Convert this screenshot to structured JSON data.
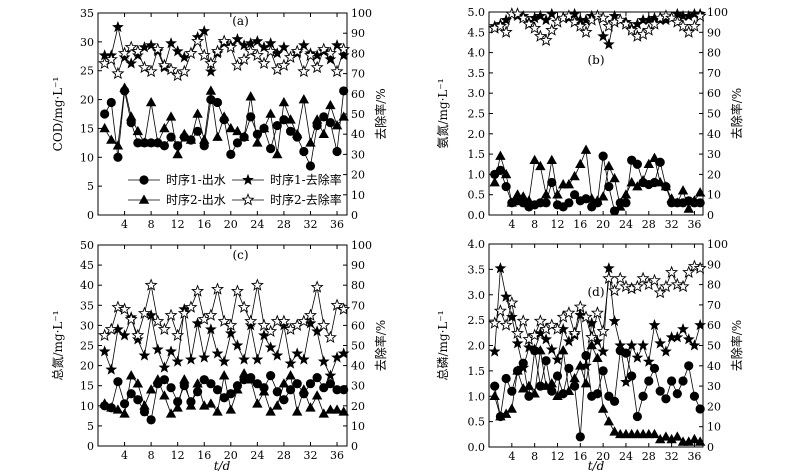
{
  "colors": {
    "ink": "#000000",
    "open_marker": "#ffffff"
  },
  "legend": {
    "entries": [
      {
        "label": "时序1-出水",
        "marker": "circle"
      },
      {
        "label": "时序2-出水",
        "marker": "triangle"
      },
      {
        "label": "时序1-去除率",
        "marker": "star-filled"
      },
      {
        "label": "时序2-去除率",
        "marker": "star-open"
      }
    ]
  },
  "shared_xlabel": "t/d",
  "chart_data": [
    {
      "panel": "(a)",
      "type": "line",
      "x": [
        1,
        2,
        3,
        4,
        5,
        6,
        7,
        8,
        9,
        10,
        11,
        12,
        13,
        14,
        15,
        16,
        17,
        18,
        19,
        20,
        21,
        22,
        23,
        24,
        25,
        26,
        27,
        28,
        29,
        30,
        31,
        32,
        33,
        34,
        35,
        36,
        37
      ],
      "xlim": [
        0,
        37.5
      ],
      "xticks": [
        4,
        8,
        12,
        16,
        20,
        24,
        28,
        32,
        36
      ],
      "ylabel": "COD/mg·L⁻¹",
      "ylim": [
        0,
        35
      ],
      "yticks": [
        0,
        5,
        10,
        15,
        20,
        25,
        30,
        35
      ],
      "y2label": "去除率/%",
      "y2lim": [
        0,
        100
      ],
      "y2ticks": [
        0,
        10,
        20,
        30,
        40,
        50,
        60,
        70,
        80,
        90,
        100
      ],
      "series": [
        {
          "name": "时序1-出水",
          "axis": "left",
          "marker": "circle",
          "values": [
            17.5,
            19.5,
            10.0,
            21.5,
            16.0,
            12.5,
            12.5,
            12.5,
            12.5,
            12.0,
            13.5,
            12.0,
            13.5,
            13.0,
            14.5,
            12.0,
            20.0,
            19.5,
            16.5,
            10.5,
            12.5,
            13.5,
            17.0,
            14.0,
            15.0,
            11.5,
            15.5,
            16.5,
            14.5,
            13.5,
            11.0,
            8.5,
            15.5,
            17.0,
            16.0,
            11.0,
            21.5
          ]
        },
        {
          "name": "时序2-出水",
          "axis": "left",
          "marker": "triangle",
          "values": [
            15.0,
            13.0,
            12.0,
            22.0,
            17.0,
            14.5,
            12.5,
            19.5,
            12.5,
            15.0,
            17.0,
            10.5,
            14.0,
            13.0,
            17.5,
            13.0,
            21.5,
            13.5,
            17.0,
            15.0,
            14.5,
            13.5,
            20.5,
            12.5,
            15.0,
            17.5,
            10.5,
            19.5,
            16.5,
            14.0,
            20.0,
            12.5,
            16.5,
            14.0,
            19.0,
            15.5,
            17.0
          ]
        },
        {
          "name": "时序1-去除率",
          "axis": "right",
          "marker": "star-filled",
          "values": [
            79,
            79,
            93,
            78,
            75,
            79,
            83,
            84,
            81,
            73,
            85,
            81,
            78,
            80,
            88,
            91,
            71,
            80,
            85,
            84,
            87,
            84,
            85,
            86,
            83,
            85,
            80,
            83,
            78,
            80,
            84,
            80,
            79,
            81,
            77,
            84,
            79
          ]
        },
        {
          "name": "时序2-去除率",
          "axis": "right",
          "marker": "star-open",
          "values": [
            75,
            77,
            70,
            80,
            83,
            81,
            73,
            71,
            82,
            74,
            72,
            69,
            71,
            80,
            86,
            79,
            75,
            81,
            86,
            83,
            74,
            77,
            81,
            79,
            75,
            81,
            72,
            74,
            78,
            81,
            71,
            79,
            73,
            82,
            80,
            71,
            82
          ]
        }
      ]
    },
    {
      "panel": "(b)",
      "type": "line",
      "x": [
        1,
        2,
        3,
        4,
        5,
        6,
        7,
        8,
        9,
        10,
        11,
        12,
        13,
        14,
        15,
        16,
        17,
        18,
        19,
        20,
        21,
        22,
        23,
        24,
        25,
        26,
        27,
        28,
        29,
        30,
        31,
        32,
        33,
        34,
        35,
        36,
        37
      ],
      "xlim": [
        0,
        37.5
      ],
      "xticks": [
        4,
        8,
        12,
        16,
        20,
        24,
        28,
        32,
        36
      ],
      "ylabel": "氨氮/mg·L⁻¹",
      "ylim": [
        0,
        5.0
      ],
      "yticks": [
        0,
        0.5,
        1.0,
        1.5,
        2.0,
        2.5,
        3.0,
        3.5,
        4.0,
        4.5,
        5.0
      ],
      "y2label": "去除率/%",
      "y2lim": [
        0,
        100
      ],
      "y2ticks": [
        0,
        10,
        20,
        30,
        40,
        50,
        60,
        70,
        80,
        90,
        100
      ],
      "series": [
        {
          "name": "时序1-出水",
          "axis": "left",
          "marker": "circle",
          "values": [
            1.0,
            1.1,
            0.7,
            0.3,
            0.35,
            0.3,
            0.2,
            0.25,
            0.3,
            0.3,
            0.8,
            0.25,
            0.2,
            0.3,
            0.5,
            0.35,
            0.4,
            0.2,
            0.3,
            1.45,
            0.7,
            0.1,
            0.3,
            0.3,
            1.35,
            1.25,
            0.8,
            0.75,
            0.8,
            1.3,
            0.7,
            0.3,
            0.3,
            0.3,
            0.35,
            0.3,
            0.3
          ]
        },
        {
          "name": "时序2-出水",
          "axis": "left",
          "marker": "triangle",
          "values": [
            0.8,
            1.45,
            1.0,
            0.3,
            0.5,
            0.45,
            0.35,
            1.35,
            1.2,
            0.5,
            1.35,
            0.5,
            0.75,
            0.75,
            0.95,
            1.25,
            1.6,
            0.4,
            0.35,
            0.45,
            1.2,
            0.9,
            0.2,
            0.5,
            0.8,
            0.7,
            0.85,
            1.25,
            1.4,
            0.8,
            0.7,
            0.4,
            0.3,
            0.6,
            0.15,
            0.35,
            0.55
          ]
        },
        {
          "name": "时序1-去除率",
          "axis": "right",
          "marker": "star-filled",
          "values": [
            93,
            94,
            96,
            99,
            98,
            98,
            95,
            97,
            98,
            96,
            99,
            95,
            97,
            97,
            99,
            96,
            96,
            98,
            98,
            88,
            84,
            98,
            96,
            95,
            92,
            94,
            96,
            96,
            97,
            96,
            96,
            97,
            99,
            98,
            98,
            99,
            99
          ]
        },
        {
          "name": "时序2-去除率",
          "axis": "right",
          "marker": "star-open",
          "values": [
            92,
            93,
            90,
            99,
            99,
            97,
            94,
            92,
            88,
            86,
            91,
            95,
            97,
            98,
            95,
            93,
            90,
            96,
            98,
            97,
            93,
            95,
            96,
            94,
            91,
            88,
            89,
            91,
            94,
            97,
            98,
            97,
            95,
            93,
            90,
            93,
            98
          ]
        }
      ]
    },
    {
      "panel": "(c)",
      "type": "line",
      "x": [
        1,
        2,
        3,
        4,
        5,
        6,
        7,
        8,
        9,
        10,
        11,
        12,
        13,
        14,
        15,
        16,
        17,
        18,
        19,
        20,
        21,
        22,
        23,
        24,
        25,
        26,
        27,
        28,
        29,
        30,
        31,
        32,
        33,
        34,
        35,
        36,
        37
      ],
      "xlim": [
        0,
        37.5
      ],
      "xticks": [
        4,
        8,
        12,
        16,
        20,
        24,
        28,
        32,
        36
      ],
      "ylabel": "总氮/mg·L⁻¹",
      "ylim": [
        0,
        50
      ],
      "yticks": [
        0,
        5,
        10,
        15,
        20,
        25,
        30,
        35,
        40,
        45,
        50
      ],
      "y2label": "去除率/%",
      "y2lim": [
        0,
        100
      ],
      "y2ticks": [
        0,
        10,
        20,
        30,
        40,
        50,
        60,
        70,
        80,
        90,
        100
      ],
      "series": [
        {
          "name": "时序1-出水",
          "axis": "left",
          "marker": "circle",
          "values": [
            10.0,
            9.5,
            16.0,
            10.5,
            13.0,
            11.5,
            8.5,
            6.5,
            15.5,
            16.5,
            14.5,
            11.0,
            15.0,
            11.0,
            13.5,
            16.5,
            15.5,
            14.0,
            12.0,
            13.0,
            15.0,
            16.5,
            17.0,
            15.5,
            14.5,
            17.5,
            13.5,
            11.5,
            14.0,
            15.5,
            13.0,
            15.5,
            17.0,
            14.5,
            15.5,
            14.0,
            14.0
          ]
        },
        {
          "name": "时序2-出水",
          "axis": "left",
          "marker": "triangle",
          "values": [
            10.5,
            9.5,
            9.0,
            8.0,
            17.5,
            15.5,
            10.0,
            14.0,
            16.5,
            12.5,
            8.0,
            9.5,
            16.5,
            10.0,
            15.5,
            10.0,
            10.5,
            8.5,
            17.5,
            9.0,
            14.0,
            18.0,
            16.5,
            10.5,
            13.5,
            8.5,
            10.0,
            15.5,
            17.5,
            8.5,
            14.0,
            9.5,
            12.5,
            8.0,
            9.0,
            9.0,
            8.5
          ]
        },
        {
          "name": "时序1-去除率",
          "axis": "right",
          "marker": "star-filled",
          "values": [
            47,
            38,
            58,
            55,
            64,
            53,
            45,
            65,
            48,
            39,
            47,
            42,
            68,
            43,
            61,
            44,
            58,
            46,
            42,
            56,
            50,
            43,
            60,
            43,
            55,
            49,
            45,
            60,
            41,
            46,
            43,
            61,
            57,
            42,
            35,
            44,
            46
          ]
        },
        {
          "name": "时序2-去除率",
          "axis": "right",
          "marker": "star-open",
          "values": [
            55,
            58,
            69,
            68,
            63,
            55,
            66,
            80,
            62,
            58,
            65,
            55,
            66,
            69,
            77,
            63,
            65,
            78,
            62,
            60,
            77,
            69,
            62,
            80,
            60,
            57,
            62,
            62,
            58,
            60,
            62,
            65,
            79,
            60,
            54,
            70,
            68
          ]
        }
      ]
    },
    {
      "panel": "(d)",
      "type": "line",
      "x": [
        1,
        2,
        3,
        4,
        5,
        6,
        7,
        8,
        9,
        10,
        11,
        12,
        13,
        14,
        15,
        16,
        17,
        18,
        19,
        20,
        21,
        22,
        23,
        24,
        25,
        26,
        27,
        28,
        29,
        30,
        31,
        32,
        33,
        34,
        35,
        36,
        37
      ],
      "xlim": [
        0,
        37.5
      ],
      "xticks": [
        4,
        8,
        12,
        16,
        20,
        24,
        28,
        32,
        36
      ],
      "ylabel": "总磷/mg·L⁻¹",
      "ylim": [
        0,
        4.0
      ],
      "yticks": [
        0,
        0.5,
        1.0,
        1.5,
        2.0,
        2.5,
        3.0,
        3.5,
        4.0
      ],
      "y2label": "去除率/%",
      "y2lim": [
        0,
        100
      ],
      "y2ticks": [
        0,
        10,
        20,
        30,
        40,
        50,
        60,
        70,
        80,
        90,
        100
      ],
      "series": [
        {
          "name": "时序1-出水",
          "axis": "left",
          "marker": "circle",
          "values": [
            1.2,
            0.6,
            1.35,
            1.1,
            1.5,
            1.65,
            1.0,
            1.9,
            1.2,
            1.7,
            1.1,
            1.4,
            1.05,
            1.55,
            1.2,
            0.2,
            1.8,
            1.0,
            1.05,
            1.5,
            1.0,
            0.9,
            1.9,
            1.85,
            1.4,
            0.6,
            1.0,
            1.3,
            1.55,
            1.1,
            0.95,
            1.3,
            1.05,
            1.3,
            1.6,
            1.0,
            0.75
          ]
        },
        {
          "name": "时序2-出水",
          "axis": "left",
          "marker": "triangle",
          "values": [
            1.0,
            0.6,
            0.65,
            0.75,
            1.5,
            1.15,
            1.2,
            1.05,
            1.9,
            1.2,
            1.25,
            1.0,
            1.9,
            1.1,
            1.35,
            1.6,
            1.25,
            2.0,
            1.75,
            0.75,
            0.5,
            0.3,
            0.25,
            0.25,
            0.25,
            0.25,
            0.25,
            0.25,
            0.25,
            0.15,
            0.2,
            0.15,
            0.2,
            0.1,
            0.1,
            0.15,
            0.1
          ]
        },
        {
          "name": "时序1-去除率",
          "axis": "right",
          "marker": "star-filled",
          "values": [
            47,
            88,
            74,
            64,
            51,
            39,
            49,
            48,
            56,
            53,
            48,
            43,
            58,
            52,
            55,
            65,
            40,
            61,
            52,
            47,
            88,
            62,
            50,
            32,
            50,
            44,
            50,
            42,
            60,
            51,
            47,
            54,
            54,
            58,
            53,
            50,
            60
          ]
        },
        {
          "name": "时序2-去除率",
          "axis": "right",
          "marker": "star-open",
          "values": [
            61,
            67,
            60,
            71,
            56,
            62,
            53,
            55,
            62,
            58,
            60,
            58,
            64,
            66,
            56,
            69,
            64,
            54,
            66,
            57,
            83,
            77,
            83,
            79,
            78,
            79,
            83,
            80,
            82,
            76,
            79,
            86,
            80,
            79,
            86,
            89,
            88
          ]
        }
      ]
    }
  ]
}
